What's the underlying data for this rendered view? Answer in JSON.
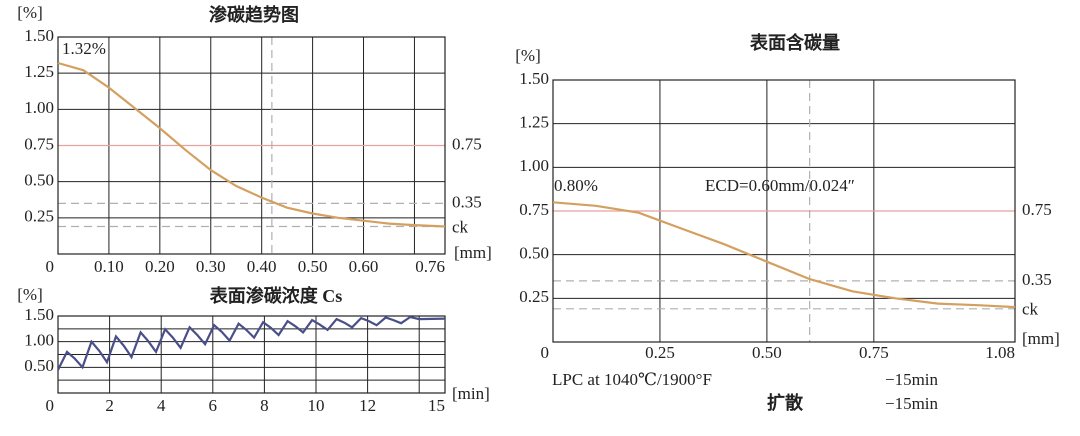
{
  "chart_data": [
    {
      "type": "line",
      "title": "渗碳趋势图",
      "y_unit": "[%]",
      "x_unit": "[mm]",
      "xlim": [
        0,
        0.76
      ],
      "ylim": [
        0,
        1.5
      ],
      "xticks": [
        0,
        {
          "value": 0.1,
          "label": "0.10"
        },
        {
          "value": 0.2,
          "label": "0.20"
        },
        {
          "value": 0.3,
          "label": "0.30"
        },
        {
          "value": 0.4,
          "label": "0.40"
        },
        {
          "value": 0.5,
          "label": "0.50"
        },
        {
          "value": 0.6,
          "label": "0.60"
        },
        0.76
      ],
      "xminor": [
        0.7
      ],
      "yticks": [
        0.25,
        {
          "value": 0.5,
          "label": "0.50"
        },
        0.75,
        {
          "value": 1,
          "label": "1.00"
        },
        1.25,
        {
          "value": 1.5,
          "label": "1.50"
        }
      ],
      "ref_lines": [
        {
          "value": 0.75,
          "color": "#e8a0a0"
        },
        {
          "value": 0.35,
          "color": "#b0b0b0",
          "dashed": true
        },
        {
          "value": 0.19,
          "label": "ck",
          "color": "#b0b0b0",
          "dashed": true
        }
      ],
      "vlines": [
        {
          "value": 0.42,
          "color": "#b0b0b0",
          "dashed": true
        }
      ],
      "annotations": [
        "1.32%"
      ],
      "color": "#d4a060",
      "x": [
        0,
        0.05,
        0.1,
        0.15,
        0.2,
        0.25,
        0.3,
        0.35,
        0.4,
        0.45,
        0.5,
        0.55,
        0.6,
        0.65,
        0.7,
        0.76
      ],
      "values": [
        1.32,
        1.27,
        1.15,
        1.01,
        0.87,
        0.72,
        0.58,
        0.47,
        0.39,
        0.32,
        0.28,
        0.25,
        0.23,
        0.21,
        0.2,
        0.19
      ]
    },
    {
      "type": "line",
      "title": "表面渗碳浓度 Cs",
      "y_unit": "[%]",
      "x_unit": "[min]",
      "xlim": [
        0,
        15
      ],
      "ylim": [
        0,
        1.5
      ],
      "xticks": [
        0,
        2,
        4,
        6,
        8,
        10,
        12,
        15
      ],
      "xminor": [
        14
      ],
      "yticks": [
        {
          "value": 0.5,
          "label": "0.50"
        },
        {
          "value": 1,
          "label": "1.00"
        },
        {
          "value": 1.5,
          "label": "1.50"
        }
      ],
      "yminor": [
        0.25,
        0.75,
        1.25
      ],
      "color": "#4a4f8a",
      "x": [
        0,
        0.35,
        0.65,
        0.95,
        1.3,
        1.6,
        1.9,
        2.25,
        2.55,
        2.85,
        3.2,
        3.5,
        3.8,
        4.15,
        4.45,
        4.75,
        5.1,
        5.4,
        5.7,
        6.05,
        6.35,
        6.65,
        7.0,
        7.3,
        7.6,
        7.95,
        8.25,
        8.55,
        8.9,
        9.2,
        9.5,
        9.85,
        10.15,
        10.45,
        10.8,
        11.1,
        11.4,
        11.75,
        12.05,
        12.35,
        12.7,
        13.0,
        13.3,
        13.65,
        14.0,
        15
      ],
      "values": [
        0.45,
        0.8,
        0.67,
        0.5,
        1.0,
        0.82,
        0.6,
        1.1,
        0.92,
        0.7,
        1.18,
        1.01,
        0.8,
        1.24,
        1.08,
        0.88,
        1.28,
        1.13,
        0.95,
        1.32,
        1.19,
        1.02,
        1.35,
        1.23,
        1.08,
        1.38,
        1.27,
        1.13,
        1.4,
        1.3,
        1.18,
        1.42,
        1.33,
        1.23,
        1.44,
        1.37,
        1.28,
        1.46,
        1.4,
        1.32,
        1.47,
        1.42,
        1.36,
        1.48,
        1.44,
        1.45
      ]
    },
    {
      "type": "line",
      "title": "表面含碳量",
      "y_unit": "[%]",
      "x_unit": "[mm]",
      "xlim": [
        0,
        1.08
      ],
      "ylim": [
        0,
        1.5
      ],
      "xticks": [
        0,
        0.25,
        {
          "value": 0.5,
          "label": "0.50"
        },
        0.75,
        1.08
      ],
      "yticks": [
        0.25,
        {
          "value": 0.5,
          "label": "0.50"
        },
        0.75,
        {
          "value": 1,
          "label": "1.00"
        },
        1.25,
        {
          "value": 1.5,
          "label": "1.50"
        }
      ],
      "ref_lines": [
        {
          "value": 0.75,
          "color": "#e8a0a0"
        },
        {
          "value": 0.35,
          "color": "#b0b0b0",
          "dashed": true
        },
        {
          "value": 0.19,
          "label": "ck",
          "color": "#b0b0b0",
          "dashed": true
        }
      ],
      "vlines": [
        {
          "value": 0.6,
          "color": "#b0b0b0",
          "dashed": true
        }
      ],
      "annotations": [
        "0.80%",
        "ECD=0.60mm/0.024″"
      ],
      "color": "#d4a060",
      "x": [
        0,
        0.1,
        0.2,
        0.3,
        0.4,
        0.5,
        0.6,
        0.7,
        0.8,
        0.9,
        1.0,
        1.08
      ],
      "values": [
        0.8,
        0.78,
        0.74,
        0.65,
        0.56,
        0.46,
        0.36,
        0.29,
        0.25,
        0.22,
        0.21,
        0.2
      ]
    }
  ],
  "footer": {
    "rows": [
      [
        "LPC at 1040℃/1900°F",
        "−15min"
      ],
      [
        "扩散",
        "−15min"
      ]
    ]
  }
}
